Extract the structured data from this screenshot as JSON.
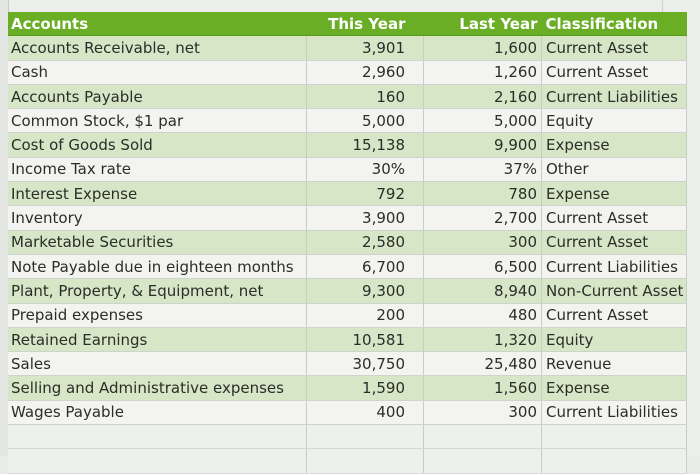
{
  "spreadsheet": {
    "headers": {
      "accounts": "Accounts",
      "this_year": "This Year",
      "last_year": "Last Year",
      "classification": "Classification"
    },
    "colors": {
      "header_bg": "#6aae26",
      "band_bg": "#d6e6c6",
      "plain_bg": "#f3f4f2"
    },
    "rows": [
      {
        "account": "Accounts Receivable, net",
        "this_year": "3,901",
        "last_year": "1,600",
        "classification": "Current Asset"
      },
      {
        "account": "Cash",
        "this_year": "2,960",
        "last_year": "1,260",
        "classification": "Current Asset"
      },
      {
        "account": "Accounts Payable",
        "this_year": "160",
        "last_year": "2,160",
        "classification": "Current Liabilities"
      },
      {
        "account": "Common Stock, $1 par",
        "this_year": "5,000",
        "last_year": "5,000",
        "classification": "Equity"
      },
      {
        "account": "Cost of Goods Sold",
        "this_year": "15,138",
        "last_year": "9,900",
        "classification": "Expense"
      },
      {
        "account": "Income Tax rate",
        "this_year": "30%",
        "last_year": "37%",
        "classification": "Other"
      },
      {
        "account": "Interest Expense",
        "this_year": "792",
        "last_year": "780",
        "classification": "Expense"
      },
      {
        "account": "Inventory",
        "this_year": "3,900",
        "last_year": "2,700",
        "classification": "Current Asset"
      },
      {
        "account": "Marketable Securities",
        "this_year": "2,580",
        "last_year": "300",
        "classification": "Current Asset"
      },
      {
        "account": "Note Payable due in eighteen months",
        "this_year": "6,700",
        "last_year": "6,500",
        "classification": "Current Liabilities"
      },
      {
        "account": "Plant, Property, & Equipment, net",
        "this_year": "9,300",
        "last_year": "8,940",
        "classification": "Non-Current Asset"
      },
      {
        "account": "Prepaid expenses",
        "this_year": "200",
        "last_year": "480",
        "classification": "Current Asset"
      },
      {
        "account": "Retained Earnings",
        "this_year": "10,581",
        "last_year": "1,320",
        "classification": "Equity"
      },
      {
        "account": "Sales",
        "this_year": "30,750",
        "last_year": "25,480",
        "classification": "Revenue"
      },
      {
        "account": "Selling and Administrative expenses",
        "this_year": "1,590",
        "last_year": "1,560",
        "classification": "Expense"
      },
      {
        "account": "Wages Payable",
        "this_year": "400",
        "last_year": "300",
        "classification": "Current Liabilities"
      }
    ]
  }
}
